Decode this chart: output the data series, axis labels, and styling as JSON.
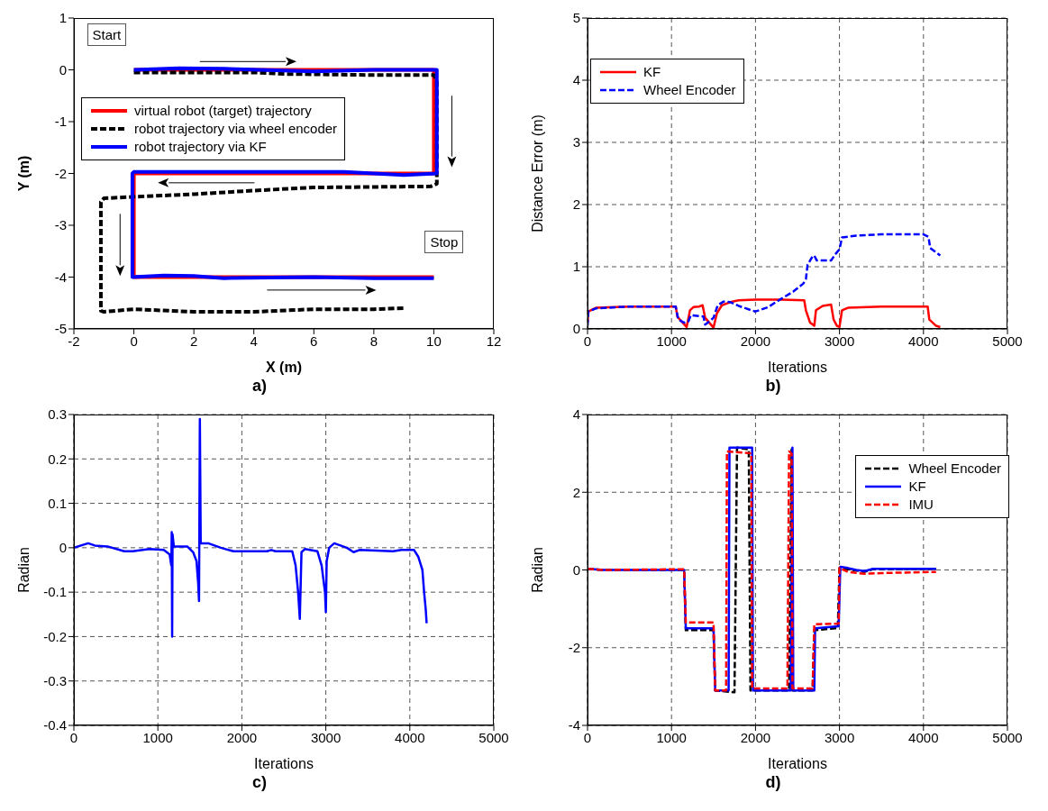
{
  "chart_data": [
    {
      "type": "line",
      "xlabel": "X (m)",
      "ylabel": "Y (m)",
      "xlim": [
        -2,
        12
      ],
      "xticks": [
        -2,
        0,
        2,
        4,
        6,
        8,
        10,
        12
      ],
      "ylim": [
        -5,
        1
      ],
      "yticks": [
        -5,
        -4,
        -3,
        -2,
        -1,
        0,
        1
      ],
      "grid": false,
      "legend": "top left",
      "annotations": [
        {
          "text": "Start",
          "x": 0,
          "y": 0
        },
        {
          "text": "Stop",
          "x": 10,
          "y": -4
        },
        "a)"
      ],
      "series": [
        {
          "name": "virtual robot (target) trajectory",
          "color": "#ff0000",
          "line_style": "solid",
          "x": [
            0,
            10,
            10,
            0,
            0,
            10
          ],
          "values": [
            0,
            0,
            -2,
            -2,
            -4,
            -4
          ]
        },
        {
          "name": "robot trajectory via wheel encoder",
          "color": "#000000",
          "line_style": "dashed",
          "x": [
            0,
            2,
            4,
            5,
            8,
            10,
            10.1,
            10.1,
            9.9,
            6,
            4,
            2,
            0,
            -1,
            -1.1,
            -1.1,
            -1,
            0,
            2,
            4,
            6,
            8,
            9
          ],
          "values": [
            -0.05,
            -0.05,
            -0.05,
            -0.08,
            -0.1,
            -0.1,
            -0.2,
            -2.2,
            -2.25,
            -2.27,
            -2.33,
            -2.4,
            -2.45,
            -2.48,
            -2.55,
            -4.65,
            -4.67,
            -4.62,
            -4.67,
            -4.67,
            -4.62,
            -4.62,
            -4.6
          ]
        },
        {
          "name": "robot trajectory via KF",
          "color": "#0000ff",
          "line_style": "solid",
          "x": [
            0,
            1.5,
            3,
            6,
            8,
            10.1,
            10.1,
            9,
            7,
            0,
            -0.05,
            -0.05,
            1,
            2,
            3,
            6,
            8,
            10
          ],
          "values": [
            0,
            0.03,
            0.02,
            -0.03,
            0,
            0,
            -2,
            -2.03,
            -1.97,
            -1.97,
            -2,
            -4,
            -3.97,
            -3.98,
            -4.02,
            -4,
            -4.02,
            -4.02
          ]
        }
      ]
    },
    {
      "type": "line",
      "xlabel": "Iterations",
      "ylabel": "Distance Error (m)",
      "xlim": [
        0,
        5000
      ],
      "xticks": [
        0,
        1000,
        2000,
        3000,
        4000,
        5000
      ],
      "ylim": [
        0,
        5
      ],
      "yticks": [
        0,
        1,
        2,
        3,
        4,
        5
      ],
      "grid": true,
      "legend": "top left",
      "annotations": [
        "b)"
      ],
      "series": [
        {
          "name": "KF",
          "color": "#ff0000",
          "line_style": "solid",
          "x": [
            0,
            10,
            100,
            500,
            1050,
            1070,
            1100,
            1180,
            1220,
            1260,
            1330,
            1370,
            1400,
            1500,
            1540,
            1600,
            1700,
            1800,
            2000,
            2300,
            2580,
            2600,
            2650,
            2700,
            2720,
            2800,
            2900,
            2930,
            2970,
            3000,
            3030,
            3100,
            3500,
            4050,
            4070,
            4150,
            4200
          ],
          "values": [
            0.1,
            0.28,
            0.34,
            0.36,
            0.36,
            0.2,
            0.15,
            0.03,
            0.3,
            0.35,
            0.36,
            0.38,
            0.18,
            0.02,
            0.25,
            0.38,
            0.43,
            0.46,
            0.47,
            0.47,
            0.46,
            0.3,
            0.1,
            0.05,
            0.3,
            0.37,
            0.39,
            0.15,
            0.05,
            0.03,
            0.3,
            0.34,
            0.36,
            0.36,
            0.15,
            0.05,
            0.03
          ]
        },
        {
          "name": "Wheel Encoder",
          "color": "#0000ff",
          "line_style": "dashed",
          "x": [
            0,
            10,
            100,
            500,
            1050,
            1080,
            1150,
            1200,
            1230,
            1380,
            1400,
            1450,
            1500,
            1550,
            1620,
            1700,
            1800,
            1950,
            2000,
            2150,
            2300,
            2450,
            2570,
            2600,
            2620,
            2680,
            2700,
            2730,
            2900,
            2950,
            3000,
            3030,
            3200,
            3500,
            4000,
            4060,
            4080,
            4200
          ],
          "values": [
            0.05,
            0.28,
            0.33,
            0.36,
            0.36,
            0.15,
            0.1,
            0.12,
            0.22,
            0.2,
            0.07,
            0.12,
            0.18,
            0.38,
            0.44,
            0.43,
            0.37,
            0.3,
            0.28,
            0.35,
            0.48,
            0.6,
            0.73,
            0.8,
            1.03,
            1.17,
            1.18,
            1.1,
            1.1,
            1.2,
            1.28,
            1.47,
            1.5,
            1.52,
            1.52,
            1.48,
            1.3,
            1.18
          ]
        }
      ]
    },
    {
      "type": "line",
      "xlabel": "Iterations",
      "ylabel": "Radian",
      "xlim": [
        0,
        5000
      ],
      "xticks": [
        0,
        1000,
        2000,
        3000,
        4000,
        5000
      ],
      "ylim": [
        -0.4,
        0.3
      ],
      "yticks": [
        -0.4,
        -0.3,
        -0.2,
        -0.1,
        0,
        0.1,
        0.2,
        0.3
      ],
      "grid": true,
      "annotations": [
        "c)"
      ],
      "series": [
        {
          "color": "#0000ff",
          "line_style": "solid",
          "x": [
            0,
            170,
            250,
            400,
            600,
            700,
            900,
            1070,
            1140,
            1160,
            1165,
            1170,
            1175,
            1190,
            1350,
            1420,
            1460,
            1480,
            1490,
            1500,
            1510,
            1600,
            1750,
            1900,
            2300,
            2350,
            2400,
            2600,
            2640,
            2670,
            2690,
            2710,
            2750,
            2900,
            2950,
            2990,
            3000,
            3010,
            3040,
            3100,
            3250,
            3330,
            3400,
            3800,
            3900,
            4050,
            4100,
            4150,
            4170,
            4190,
            4200
          ],
          "values": [
            0,
            0.01,
            0.005,
            0.003,
            -0.008,
            -0.008,
            -0.003,
            -0.005,
            -0.015,
            -0.04,
            0.035,
            -0.2,
            0.03,
            0.003,
            0.003,
            -0.01,
            -0.03,
            -0.08,
            -0.12,
            0.29,
            0.01,
            0.01,
            0,
            -0.008,
            -0.008,
            -0.005,
            -0.008,
            -0.008,
            -0.04,
            -0.1,
            -0.16,
            -0.01,
            -0.003,
            -0.008,
            -0.04,
            -0.1,
            -0.145,
            -0.03,
            0,
            0.01,
            0,
            -0.01,
            -0.005,
            -0.008,
            -0.005,
            -0.005,
            -0.02,
            -0.05,
            -0.1,
            -0.14,
            -0.17
          ]
        }
      ]
    },
    {
      "type": "line",
      "xlabel": "Iterations",
      "ylabel": "Radian",
      "xlim": [
        0,
        5000
      ],
      "xticks": [
        0,
        1000,
        2000,
        3000,
        4000,
        5000
      ],
      "ylim": [
        -4,
        4
      ],
      "yticks": [
        -4,
        -2,
        0,
        2,
        4
      ],
      "grid": true,
      "legend": "top right",
      "annotations": [
        "d)"
      ],
      "series": [
        {
          "name": "Wheel Encoder",
          "color": "#000000",
          "line_style": "dashed",
          "x": [
            0,
            200,
            1150,
            1170,
            1500,
            1520,
            1750,
            1780,
            1920,
            1940,
            2400,
            2430,
            2440,
            2680,
            2700,
            2950,
            2980,
            3000,
            3100,
            3300,
            3400,
            4150
          ],
          "values": [
            0.03,
            0,
            0,
            -1.55,
            -1.55,
            -3.1,
            -3.15,
            3.15,
            3.1,
            -3.1,
            -3.1,
            3.1,
            -3.1,
            -3.1,
            -1.55,
            -1.5,
            -1.5,
            0.05,
            0.02,
            -0.05,
            0.02,
            0.03
          ]
        },
        {
          "name": "KF",
          "color": "#0000ff",
          "line_style": "solid",
          "x": [
            0,
            200,
            1150,
            1170,
            1500,
            1520,
            1680,
            1690,
            1960,
            1970,
            2420,
            2440,
            2450,
            2700,
            2710,
            2990,
            3010,
            3100,
            3200,
            3300,
            3400,
            4150
          ],
          "values": [
            0.03,
            0,
            0,
            -1.5,
            -1.5,
            -3.1,
            -3.1,
            3.15,
            3.15,
            -3.1,
            -3.1,
            3.15,
            -3.1,
            -3.1,
            -1.5,
            -1.45,
            0.08,
            0.05,
            0,
            -0.03,
            0.03,
            0.03
          ]
        },
        {
          "name": "IMU",
          "color": "#ff0000",
          "line_style": "dashed",
          "x": [
            0,
            200,
            1150,
            1170,
            1500,
            1520,
            1650,
            1660,
            1950,
            1960,
            2380,
            2400,
            2430,
            2440,
            2680,
            2700,
            2990,
            3000,
            3100,
            3300,
            3500,
            4150
          ],
          "values": [
            0.03,
            0,
            0.02,
            -1.35,
            -1.35,
            -3.1,
            -3.1,
            3.05,
            3,
            -3.05,
            -3.05,
            3.05,
            3,
            -3.05,
            -3.05,
            -1.4,
            -1.38,
            0.05,
            -0.05,
            -0.1,
            -0.08,
            -0.05
          ]
        }
      ]
    }
  ]
}
